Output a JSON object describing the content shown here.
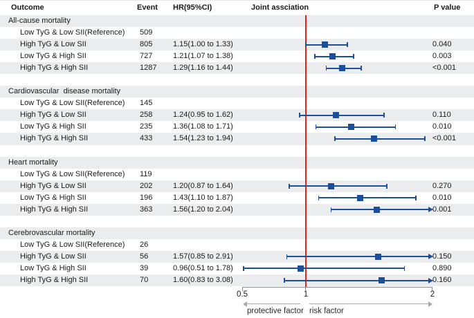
{
  "columns": {
    "outcome": "Outcome",
    "event": "Event",
    "hr": "HR(95%CI)",
    "plot": "Joint assciation",
    "p": "P value"
  },
  "colors": {
    "marker_blue": "#1b4f9c",
    "reference_line_red": "#e02420",
    "stripe_gray": "#ebeced",
    "axis_gray": "#8c8c8c"
  },
  "axis": {
    "min": 0.5,
    "max": 2,
    "tick_labels": [
      "0.5",
      "1",
      "2"
    ],
    "tick_values": [
      0.5,
      1,
      2
    ],
    "reference_value": 1,
    "left_label": "protective factor",
    "right_label": "risk factor"
  },
  "chart_data": {
    "type": "forest",
    "title": "",
    "x_axis": {
      "scale": "linear",
      "range": [
        0.5,
        2
      ],
      "ticks": [
        0.5,
        1,
        2
      ]
    },
    "groups": [
      {
        "name": "All-cause mortality",
        "rows": [
          {
            "label": "Low TyG & Low SII(Reference)",
            "event": "509",
            "hr_text": "",
            "p": ""
          },
          {
            "label": "High TyG & Low SII",
            "event": "805",
            "hr_text": "1.15(1.00 to 1.33)",
            "hr": 1.15,
            "lo": 1.0,
            "hi": 1.33,
            "p": "0.040"
          },
          {
            "label": "Low TyG & High SII",
            "event": "727",
            "hr_text": "1.21(1.07 to 1.38)",
            "hr": 1.21,
            "lo": 1.07,
            "hi": 1.38,
            "p": "0.003"
          },
          {
            "label": "High TyG & High SII",
            "event": "1287",
            "hr_text": "1.29(1.16 to 1.44)",
            "hr": 1.29,
            "lo": 1.16,
            "hi": 1.44,
            "p": "<0.001"
          }
        ]
      },
      {
        "name": "Cardiovascular  disease mortality",
        "rows": [
          {
            "label": "Low TyG & Low SII(Reference)",
            "event": "145",
            "hr_text": "",
            "p": ""
          },
          {
            "label": "High TyG & Low SII",
            "event": "258",
            "hr_text": "1.24(0.95 to 1.62)",
            "hr": 1.24,
            "lo": 0.95,
            "hi": 1.62,
            "p": "0.110"
          },
          {
            "label": "Low TyG & High SII",
            "event": "235",
            "hr_text": "1.36(1.08 to 1.71)",
            "hr": 1.36,
            "lo": 1.08,
            "hi": 1.71,
            "p": "0.010"
          },
          {
            "label": "High TyG & High SII",
            "event": "433",
            "hr_text": "1.54(1.23 to 1.94)",
            "hr": 1.54,
            "lo": 1.23,
            "hi": 1.94,
            "p": "<0.001"
          }
        ]
      },
      {
        "name": "Heart mortality",
        "rows": [
          {
            "label": "Low TyG & Low SII(Reference)",
            "event": "119",
            "hr_text": "",
            "p": ""
          },
          {
            "label": "High TyG & Low SII",
            "event": "202",
            "hr_text": "1.20(0.87 to 1.64)",
            "hr": 1.2,
            "lo": 0.87,
            "hi": 1.64,
            "p": "0.270"
          },
          {
            "label": "Low TyG & High SII",
            "event": "196",
            "hr_text": "1.43(1.10 to 1.87)",
            "hr": 1.43,
            "lo": 1.1,
            "hi": 1.87,
            "p": "0.010"
          },
          {
            "label": "High TyG & High SII",
            "event": "363",
            "hr_text": "1.56(1.20 to 2.04)",
            "hr": 1.56,
            "lo": 1.2,
            "hi": 2.04,
            "p": "0.001"
          }
        ]
      },
      {
        "name": "Cerebrovascular mortality",
        "rows": [
          {
            "label": "Low TyG & Low SII(Reference)",
            "event": "26",
            "hr_text": "",
            "p": ""
          },
          {
            "label": "High TyG & Low SII",
            "event": "56",
            "hr_text": "1.57(0.85 to 2.91)",
            "hr": 1.57,
            "lo": 0.85,
            "hi": 2.91,
            "p": "0.150"
          },
          {
            "label": "Low TyG & High SII",
            "event": "39",
            "hr_text": "0.96(0.51 to 1.78)",
            "hr": 0.96,
            "lo": 0.51,
            "hi": 1.78,
            "p": "0.890"
          },
          {
            "label": "High TyG & High SII",
            "event": "70",
            "hr_text": "1.60(0.83 to 3.08)",
            "hr": 1.6,
            "lo": 0.83,
            "hi": 3.08,
            "p": "0.160"
          }
        ]
      }
    ]
  }
}
